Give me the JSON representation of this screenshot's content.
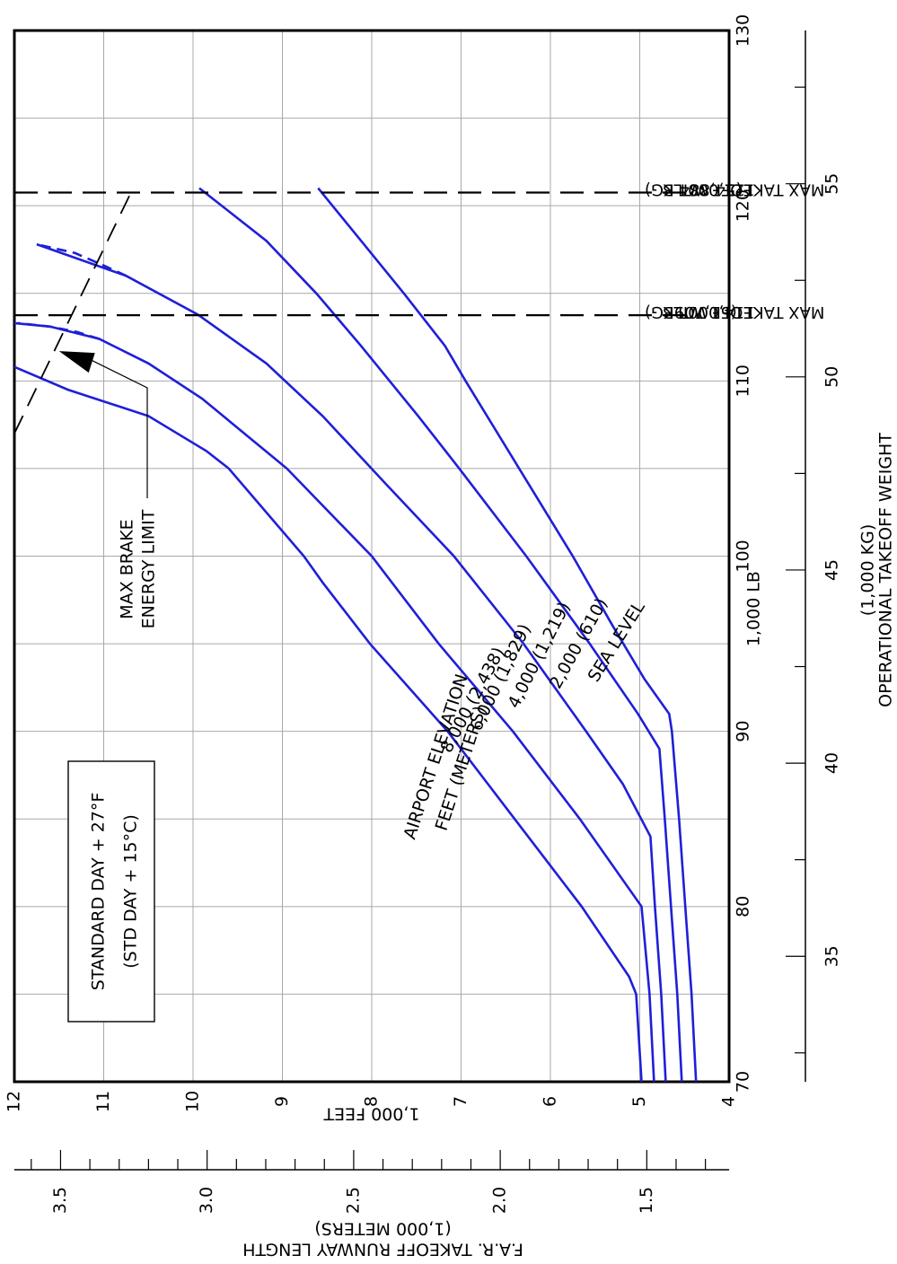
{
  "chart_data": {
    "type": "line",
    "orientation": "rotated-90-clockwise",
    "x_axis": {
      "title": "1,000 LB",
      "range": [
        70,
        130
      ],
      "ticks": [
        70,
        80,
        90,
        100,
        110,
        120,
        130
      ],
      "tick_labels": [
        "70",
        "80",
        "90",
        "100",
        "110",
        "120",
        "130"
      ],
      "secondary": {
        "title": "(1,000 KG)",
        "title2": "OPERATIONAL TAKEOFF WEIGHT",
        "ticks": [
          35,
          40,
          45,
          50,
          55
        ],
        "tick_labels": [
          "35",
          "40",
          "45",
          "50",
          "55"
        ],
        "minor_step": 2.5,
        "range_kg": [
          31.75,
          58.97
        ]
      }
    },
    "y_axis": {
      "title": "1,000 FEET",
      "range": [
        4,
        12
      ],
      "ticks": [
        4,
        5,
        6,
        7,
        8,
        9,
        10,
        11,
        12
      ],
      "tick_labels": [
        "4",
        "5",
        "6",
        "7",
        "8",
        "9",
        "10",
        "11",
        "12"
      ],
      "secondary": {
        "title": "(1,000 METERS)",
        "title2": "F.A.R. TAKEOFF RUNWAY LENGTH",
        "ticks": [
          1.5,
          2.0,
          2.5,
          3.0,
          3.5
        ],
        "tick_labels": [
          "1.5",
          "2.0",
          "2.5",
          "3.0",
          "3.5"
        ],
        "minor_step": 0.1,
        "range_m": [
          1.219,
          3.658
        ]
      }
    },
    "grid": true,
    "note": {
      "line1": "STANDARD DAY + 27°F",
      "line2": "(STD DAY + 15°C)"
    },
    "curve_group_label": {
      "line1": "AIRPORT ELEVATION",
      "line2": "FEET    (METERS)"
    },
    "series": [
      {
        "name": "SEA LEVEL",
        "points": [
          [
            70,
            4.37
          ],
          [
            75,
            4.42
          ],
          [
            80,
            4.49
          ],
          [
            85,
            4.56
          ],
          [
            90,
            4.64
          ],
          [
            91,
            4.67
          ],
          [
            93,
            4.95
          ],
          [
            96,
            5.3
          ],
          [
            100,
            5.75
          ],
          [
            105,
            6.35
          ],
          [
            110,
            6.95
          ],
          [
            112,
            7.18
          ],
          [
            115,
            7.64
          ],
          [
            118,
            8.12
          ],
          [
            121,
            8.6
          ]
        ]
      },
      {
        "name": "2,000  (610)",
        "points": [
          [
            70,
            4.53
          ],
          [
            75,
            4.58
          ],
          [
            80,
            4.65
          ],
          [
            85,
            4.72
          ],
          [
            89,
            4.78
          ],
          [
            91,
            5.02
          ],
          [
            95,
            5.56
          ],
          [
            100,
            6.27
          ],
          [
            105,
            7.02
          ],
          [
            108,
            7.48
          ],
          [
            112,
            8.12
          ],
          [
            115,
            8.62
          ],
          [
            118,
            9.18
          ],
          [
            121,
            9.93
          ]
        ]
      },
      {
        "name": "4,000  (1,219)",
        "points": [
          [
            70,
            4.71
          ],
          [
            75,
            4.76
          ],
          [
            80,
            4.83
          ],
          [
            84,
            4.88
          ],
          [
            87,
            5.19
          ],
          [
            90,
            5.6
          ],
          [
            95,
            6.3
          ],
          [
            100,
            7.08
          ],
          [
            104,
            7.82
          ],
          [
            108,
            8.55
          ],
          [
            111,
            9.18
          ],
          [
            113.8,
            9.95
          ],
          [
            116,
            10.75
          ],
          [
            117.8,
            11.75
          ]
        ]
      },
      {
        "name": "6,000  (1,829)",
        "points": [
          [
            70,
            4.84
          ],
          [
            75,
            4.89
          ],
          [
            80,
            4.98
          ],
          [
            85,
            5.67
          ],
          [
            90,
            6.42
          ],
          [
            95,
            7.25
          ],
          [
            100,
            8.0
          ],
          [
            105,
            8.95
          ],
          [
            109,
            9.9
          ],
          [
            111,
            10.5
          ],
          [
            112.4,
            11.05
          ],
          [
            113.1,
            11.6
          ],
          [
            113.3,
            12.0
          ]
        ]
      },
      {
        "name": "8,000  (2,438)",
        "points": [
          [
            70,
            4.98
          ],
          [
            75,
            5.04
          ],
          [
            76,
            5.12
          ],
          [
            80,
            5.65
          ],
          [
            85,
            6.4
          ],
          [
            90,
            7.15
          ],
          [
            95,
            8.02
          ],
          [
            98.5,
            8.55
          ],
          [
            100,
            8.76
          ],
          [
            105,
            9.6
          ],
          [
            106,
            9.85
          ],
          [
            108,
            10.5
          ],
          [
            109.5,
            11.4
          ],
          [
            110.8,
            12.0
          ]
        ]
      }
    ],
    "series_labels": [
      "SEA LEVEL",
      "2,000  (610)",
      "4,000  (1,219)",
      "6,000  (1,829)",
      "8,000  (2,438)"
    ],
    "extensions": [
      {
        "points": [
          [
            116,
            10.75
          ],
          [
            116.5,
            10.96
          ],
          [
            117.3,
            11.32
          ],
          [
            117.8,
            11.75
          ]
        ]
      },
      {
        "points": [
          [
            112.4,
            11.05
          ],
          [
            112.8,
            11.3
          ],
          [
            113.1,
            11.6
          ],
          [
            113.3,
            11.96
          ]
        ]
      }
    ],
    "weight_limits": [
      {
        "x": 113.75,
        "lines": [
          "MAX TAKEOFF WT",
          "114,000 LB",
          "(51,709KG)"
        ]
      },
      {
        "x": 120.75,
        "lines": [
          "MAX TAKEOFF WT",
          "121,000 LB",
          "(54,884 KG)"
        ]
      }
    ],
    "brake_energy_limit": {
      "label1": "MAX BRAKE",
      "label2": "ENERGY LIMIT",
      "points": [
        [
          107,
          12.0
        ],
        [
          120.7,
          10.7
        ]
      ],
      "arrow_at": [
        111.7,
        11.5
      ]
    },
    "colors": {
      "curves": "#1f1fd8",
      "grid": "#a8a8a8",
      "text": "#000000"
    }
  }
}
